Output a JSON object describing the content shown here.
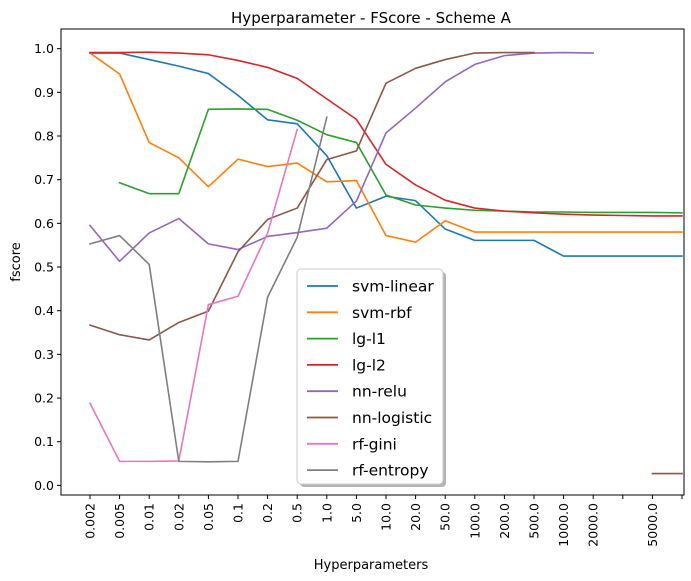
{
  "chart_data": {
    "type": "line",
    "title": "Hyperparameter - FScore - Scheme A",
    "xlabel": "Hyperparameters",
    "ylabel": "fscore",
    "categories": [
      "0.002",
      "0.005",
      "0.01",
      "0.02",
      "0.05",
      "0.1",
      "0.2",
      "0.5",
      "1.0",
      "5.0",
      "10.0",
      "20.0",
      "50.0",
      "100.0",
      "200.0",
      "500.0",
      "1000.0",
      "2000.0",
      "",
      "5000.0",
      ""
    ],
    "ylim": [
      -0.022,
      1.045
    ],
    "yticks": [
      0.0,
      0.1,
      0.2,
      0.3,
      0.4,
      0.5,
      0.6,
      0.7,
      0.8,
      0.9,
      1.0
    ],
    "ytick_labels": [
      "0.0",
      "0.1",
      "0.2",
      "0.3",
      "0.4",
      "0.5",
      "0.6",
      "0.7",
      "0.8",
      "0.9",
      "1.0"
    ],
    "grid": false,
    "legend_position": "lower-center",
    "series": [
      {
        "name": "svm-linear",
        "color": "#1f77b4",
        "values": [
          0.99,
          0.99,
          0.975,
          0.96,
          0.943,
          0.893,
          0.837,
          0.828,
          0.755,
          0.635,
          0.662,
          0.652,
          0.587,
          0.561,
          0.561,
          0.561,
          0.525,
          0.525,
          0.525,
          0.525,
          0.525
        ]
      },
      {
        "name": "svm-rbf",
        "color": "#ff7f0e",
        "values": [
          0.99,
          0.942,
          0.785,
          0.75,
          0.684,
          0.747,
          0.73,
          0.738,
          0.695,
          0.698,
          0.572,
          0.557,
          0.606,
          0.58,
          0.58,
          0.58,
          0.58,
          0.58,
          0.58,
          0.58,
          0.58
        ]
      },
      {
        "name": "lg-l1",
        "color": "#2ca02c",
        "values": [
          null,
          0.693,
          0.668,
          0.668,
          0.861,
          0.862,
          0.861,
          0.836,
          0.803,
          0.785,
          0.665,
          0.642,
          0.635,
          0.63,
          0.628,
          0.626,
          0.626,
          0.625,
          0.625,
          0.625,
          0.624
        ]
      },
      {
        "name": "lg-l2",
        "color": "#d62728",
        "values": [
          0.991,
          0.991,
          0.992,
          0.99,
          0.986,
          0.973,
          0.957,
          0.932,
          0.885,
          0.838,
          0.735,
          0.688,
          0.653,
          0.635,
          0.628,
          0.624,
          0.621,
          0.619,
          0.618,
          0.617,
          0.617
        ]
      },
      {
        "name": "nn-relu",
        "color": "#9467bd",
        "values": [
          0.595,
          0.513,
          0.578,
          0.611,
          0.553,
          0.54,
          0.57,
          0.579,
          0.589,
          0.651,
          0.807,
          0.864,
          0.924,
          0.964,
          0.984,
          0.99,
          0.991,
          0.99,
          null,
          null,
          null
        ]
      },
      {
        "name": "nn-logistic",
        "color": "#8c564b",
        "values": [
          0.367,
          0.345,
          0.333,
          0.373,
          0.399,
          0.535,
          0.609,
          0.635,
          0.746,
          0.766,
          0.921,
          0.955,
          0.975,
          0.99,
          0.991,
          0.991,
          null,
          null,
          null,
          0.027,
          0.027
        ]
      },
      {
        "name": "rf-gini",
        "color": "#e377c2",
        "values": [
          0.188,
          0.055,
          0.055,
          0.056,
          0.414,
          0.433,
          0.578,
          0.815,
          null,
          null,
          null,
          null,
          null,
          null,
          null,
          null,
          null,
          null,
          null,
          null,
          null
        ]
      },
      {
        "name": "rf-entropy",
        "color": "#7f7f7f",
        "values": [
          0.553,
          0.572,
          0.506,
          0.055,
          0.054,
          0.055,
          0.431,
          0.568,
          0.843,
          null,
          null,
          null,
          null,
          null,
          null,
          null,
          null,
          null,
          null,
          null,
          null
        ]
      }
    ]
  }
}
